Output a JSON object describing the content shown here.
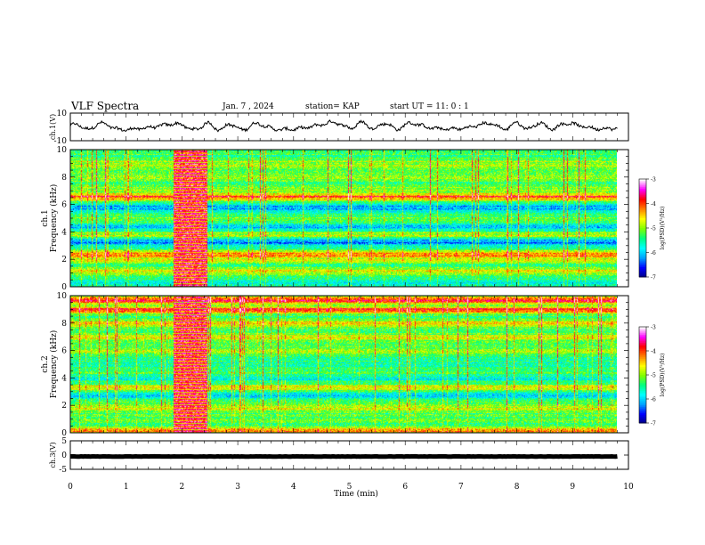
{
  "header": {
    "title": "VLF Spectra",
    "date": "Jan. 7 , 2024",
    "station": "station= KAP",
    "start": "start UT =  11: 0  : 1"
  },
  "chart_data": [
    {
      "type": "line",
      "panel": "ch1-waveform",
      "ylabel": "ch.1(V)",
      "ylim": [
        -10,
        10
      ],
      "yticks": [
        "10",
        "-10"
      ],
      "x_range": [
        0,
        9.8
      ],
      "description_values": {
        "mean": 0,
        "amplitude": 4
      },
      "line_color": "#000000"
    },
    {
      "type": "heatmap",
      "panel": "ch1-spectrogram",
      "ylabel": "ch.1\nFrequency (kHz)",
      "ylabel_line1": "ch.1",
      "ylabel_line2": "Frequency (kHz)",
      "ylim": [
        0,
        10
      ],
      "yticks": [
        "0",
        "2",
        "4",
        "6",
        "8",
        "10"
      ],
      "x_range": [
        0,
        9.8
      ],
      "burst_interval_min": [
        1.85,
        2.45
      ],
      "bands_khz": [
        {
          "f": 0.3,
          "level": 0.35
        },
        {
          "f": 1.2,
          "level": 0.55
        },
        {
          "f": 2.0,
          "level": 0.55
        },
        {
          "f": 2.4,
          "level": 0.7
        },
        {
          "f": 3.0,
          "level": 0.35
        },
        {
          "f": 3.3,
          "level": 0.2
        },
        {
          "f": 3.8,
          "level": 0.55
        },
        {
          "f": 4.4,
          "level": 0.25
        },
        {
          "f": 5.0,
          "level": 0.45
        },
        {
          "f": 5.8,
          "level": 0.2
        },
        {
          "f": 6.6,
          "level": 0.75
        },
        {
          "f": 7.2,
          "level": 0.5
        },
        {
          "f": 8.0,
          "level": 0.5
        },
        {
          "f": 9.0,
          "level": 0.55
        }
      ]
    },
    {
      "type": "heatmap",
      "panel": "ch2-spectrogram",
      "ylabel": "ch.2\nFrequency (kHz)",
      "ylabel_line1": "ch.2",
      "ylabel_line2": "Frequency (kHz)",
      "ylim": [
        0,
        10
      ],
      "yticks": [
        "0",
        "2",
        "4",
        "6",
        "8",
        "10"
      ],
      "x_range": [
        0,
        9.8
      ],
      "burst_interval_min": [
        1.85,
        2.45
      ],
      "bands_khz": [
        {
          "f": 0.2,
          "level": 0.7
        },
        {
          "f": 1.0,
          "level": 0.45
        },
        {
          "f": 1.8,
          "level": 0.55
        },
        {
          "f": 2.8,
          "level": 0.25
        },
        {
          "f": 3.3,
          "level": 0.6
        },
        {
          "f": 4.0,
          "level": 0.3
        },
        {
          "f": 5.0,
          "level": 0.35
        },
        {
          "f": 6.0,
          "level": 0.55
        },
        {
          "f": 7.0,
          "level": 0.6
        },
        {
          "f": 8.0,
          "level": 0.65
        },
        {
          "f": 9.0,
          "level": 0.75
        },
        {
          "f": 9.7,
          "level": 0.8
        }
      ]
    },
    {
      "type": "line",
      "panel": "ch3-waveform",
      "ylabel": "ch.3(V)",
      "ylim": [
        -5,
        5
      ],
      "yticks": [
        "5",
        "0",
        "-5"
      ],
      "x_range": [
        0,
        9.8
      ],
      "description_values": {
        "mean": -0.5,
        "amplitude": 0.3
      },
      "line_color": "#000000"
    }
  ],
  "xaxis": {
    "label": "Time (min)",
    "ticks": [
      "0",
      "1",
      "2",
      "3",
      "4",
      "5",
      "6",
      "7",
      "8",
      "9",
      "10"
    ],
    "xlim": [
      0,
      10
    ]
  },
  "colorbar": {
    "label": "log(PSD)(V²/Hz)",
    "ticks": [
      "-3",
      "-4",
      "-5",
      "-6",
      "-7"
    ],
    "range": [
      -7,
      -3
    ],
    "colors": [
      "#000080",
      "#0000ff",
      "#00a0ff",
      "#00ffff",
      "#00ff80",
      "#80ff00",
      "#ffff00",
      "#ff8000",
      "#ff0000",
      "#ff00ff",
      "#ffffff"
    ]
  }
}
